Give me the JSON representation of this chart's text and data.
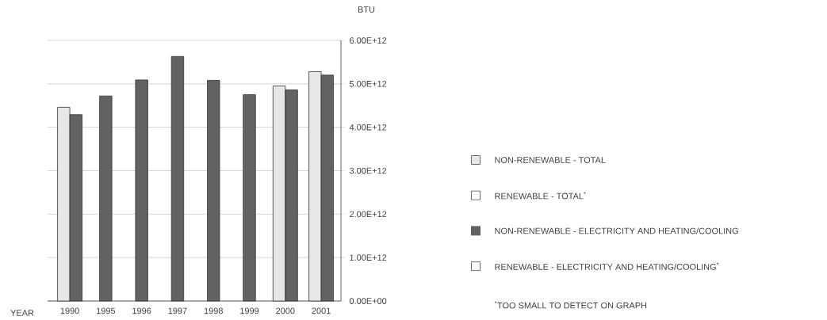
{
  "chart_data": {
    "type": "bar",
    "xlabel": "YEAR",
    "ylabel": "BTU",
    "categories": [
      "1990",
      "1995",
      "1996",
      "1997",
      "1998",
      "1999",
      "2000",
      "2001"
    ],
    "series": [
      {
        "name": "NON-RENEWABLE - TOTAL",
        "color": "#e6e7e8",
        "values": [
          4460000000000.0,
          null,
          null,
          null,
          null,
          null,
          4950000000000.0,
          5280000000000.0
        ]
      },
      {
        "name": "RENEWABLE - TOTAL$^{*}$",
        "color": "#ffffff",
        "values": [
          null,
          null,
          null,
          null,
          null,
          null,
          null,
          null
        ]
      },
      {
        "name": "NON-RENEWABLE - ELECTRICITY AND HEATING/COOLING",
        "color": "#616263",
        "values": [
          4290000000000.0,
          4720000000000.0,
          5090000000000.0,
          5630000000000.0,
          5080000000000.0,
          4750000000000.0,
          4860000000000.0,
          5200000000000.0
        ]
      },
      {
        "name": "RENEWABLE - ELECTRICITY AND HEATING/COOLING$^{*}$",
        "color": "#ffffff",
        "values": [
          null,
          null,
          null,
          null,
          null,
          null,
          null,
          null
        ]
      }
    ],
    "ylim": [
      0,
      6000000000000.0
    ],
    "yticks": [
      {
        "value": 0,
        "label": "0.00E+00"
      },
      {
        "value": 1000000000000.0,
        "label": "1.00E+12"
      },
      {
        "value": 2000000000000.0,
        "label": "2.00E+12"
      },
      {
        "value": 3000000000000.0,
        "label": "3.00E+12"
      },
      {
        "value": 4000000000000.0,
        "label": "4.00E+12"
      },
      {
        "value": 5000000000000.0,
        "label": "5.00E+12"
      },
      {
        "value": 6000000000000.0,
        "label": "6.00E+12"
      }
    ],
    "grid": "y",
    "legend": "right",
    "annotations": [
      "$^{*}$TOO SMALL TO DETECT ON GRAPH"
    ]
  }
}
